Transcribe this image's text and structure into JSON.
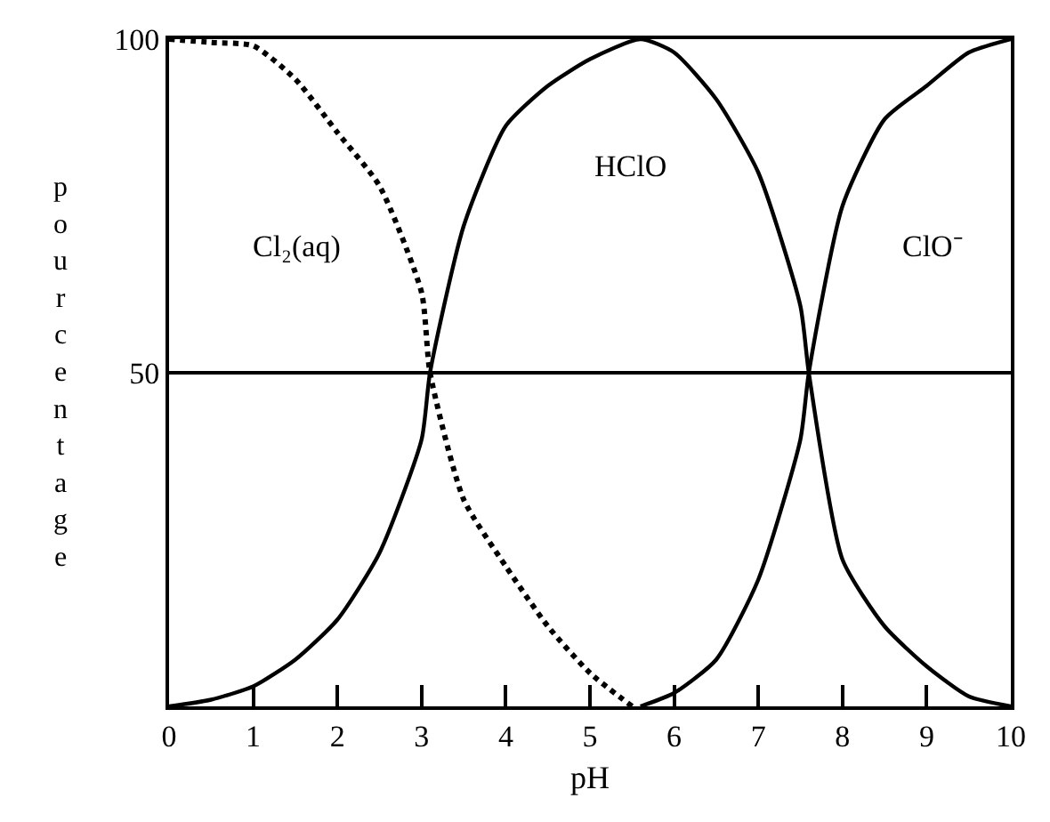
{
  "chart_data": {
    "type": "line",
    "xlabel": "pH",
    "ylabel": "pourcentage",
    "xlim": [
      0,
      10
    ],
    "xticks": [
      0,
      1,
      2,
      3,
      4,
      5,
      6,
      7,
      8,
      9,
      10
    ],
    "ylim": [
      0,
      100
    ],
    "yticks": [
      50,
      100
    ],
    "grid": "y",
    "legend": false,
    "marker": "none",
    "series": [
      {
        "name": "Cl₂(aq)",
        "color": "#000000",
        "line_style": "dotted",
        "x": [
          0,
          0.5,
          1,
          1.5,
          2,
          2.5,
          3,
          3.1,
          3.5,
          4,
          4.5,
          5,
          5.5
        ],
        "values": [
          100,
          99.5,
          99,
          94,
          86,
          78,
          62,
          50,
          31,
          21,
          12,
          5,
          0
        ]
      },
      {
        "name": "HClO",
        "color": "#000000",
        "line_style": "solid",
        "x": [
          0,
          0.5,
          1,
          1.5,
          2,
          2.5,
          3,
          3.1,
          3.5,
          4,
          4.5,
          5,
          5.6,
          6,
          6.5,
          7,
          7.5,
          7.6,
          8,
          8.5,
          9,
          9.5,
          10
        ],
        "values": [
          0,
          1,
          3,
          7,
          13,
          23,
          40,
          50,
          72,
          87,
          93,
          97,
          100,
          98,
          91,
          80,
          60,
          50,
          22,
          12,
          6,
          1.5,
          0
        ]
      },
      {
        "name": "ClO⁻",
        "color": "#000000",
        "line_style": "solid",
        "x": [
          5.6,
          6,
          6.5,
          7,
          7.5,
          7.6,
          8,
          8.5,
          9,
          9.5,
          10
        ],
        "values": [
          0,
          2,
          7,
          19,
          40,
          50,
          75,
          88,
          93,
          98,
          100
        ]
      }
    ]
  }
}
